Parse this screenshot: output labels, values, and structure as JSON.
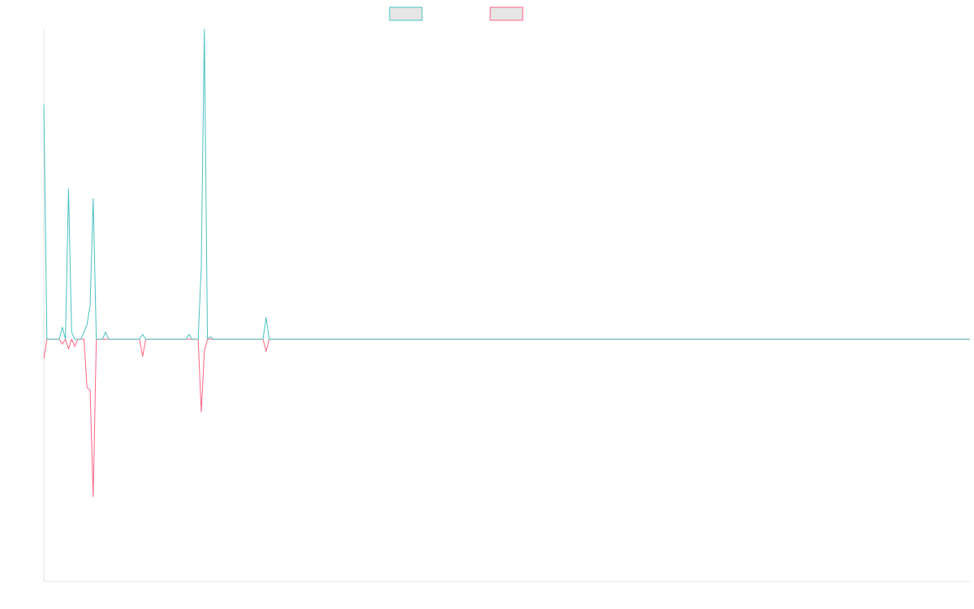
{
  "chart_data": {
    "type": "line",
    "title": "",
    "xlabel": "",
    "ylabel": "",
    "grid": false,
    "legend": "top-center",
    "x_count": 301,
    "ylim": [
      -1.0,
      1.28
    ],
    "series": [
      {
        "color": "#4bc0c0",
        "fill": "#e6e6e6",
        "points": [
          [
            0,
            0.97
          ],
          [
            1,
            0.0
          ],
          [
            5,
            0.0
          ],
          [
            6,
            0.05
          ],
          [
            7,
            0.0
          ],
          [
            8,
            0.62
          ],
          [
            9,
            0.03
          ],
          [
            10,
            0.0
          ],
          [
            11,
            0.0
          ],
          [
            12,
            0.0
          ],
          [
            13,
            0.03
          ],
          [
            14,
            0.06
          ],
          [
            15,
            0.14
          ],
          [
            16,
            0.58
          ],
          [
            17,
            0.0
          ],
          [
            19,
            0.0
          ],
          [
            20,
            0.03
          ],
          [
            21,
            0.0
          ],
          [
            31,
            0.0
          ],
          [
            32,
            0.02
          ],
          [
            33,
            0.0
          ],
          [
            35,
            0.0
          ],
          [
            36,
            0.0
          ],
          [
            46,
            0.0
          ],
          [
            47,
            0.02
          ],
          [
            48,
            0.0
          ],
          [
            50,
            0.0
          ],
          [
            51,
            0.3
          ],
          [
            52,
            1.28
          ],
          [
            53,
            0.0
          ],
          [
            54,
            0.01
          ],
          [
            55,
            0.0
          ],
          [
            71,
            0.0
          ],
          [
            72,
            0.09
          ],
          [
            73,
            0.0
          ],
          [
            300,
            0.0
          ]
        ]
      },
      {
        "color": "#ff6384",
        "fill": "#e6e6e6",
        "points": [
          [
            0,
            -0.08
          ],
          [
            1,
            0.0
          ],
          [
            5,
            0.0
          ],
          [
            6,
            -0.02
          ],
          [
            7,
            0.0
          ],
          [
            8,
            -0.04
          ],
          [
            9,
            0.0
          ],
          [
            10,
            -0.03
          ],
          [
            11,
            0.0
          ],
          [
            12,
            0.0
          ],
          [
            13,
            0.0
          ],
          [
            14,
            -0.2
          ],
          [
            15,
            -0.21
          ],
          [
            16,
            -0.65
          ],
          [
            17,
            0.0
          ],
          [
            19,
            0.0
          ],
          [
            20,
            0.0
          ],
          [
            21,
            0.0
          ],
          [
            31,
            0.0
          ],
          [
            32,
            -0.07
          ],
          [
            33,
            0.0
          ],
          [
            35,
            0.0
          ],
          [
            36,
            0.0
          ],
          [
            46,
            0.0
          ],
          [
            47,
            0.0
          ],
          [
            48,
            0.0
          ],
          [
            50,
            0.0
          ],
          [
            51,
            -0.3
          ],
          [
            52,
            -0.05
          ],
          [
            53,
            0.0
          ],
          [
            54,
            0.0
          ],
          [
            55,
            0.0
          ],
          [
            71,
            0.0
          ],
          [
            72,
            -0.05
          ],
          [
            73,
            0.0
          ],
          [
            300,
            0.0
          ]
        ]
      }
    ]
  }
}
